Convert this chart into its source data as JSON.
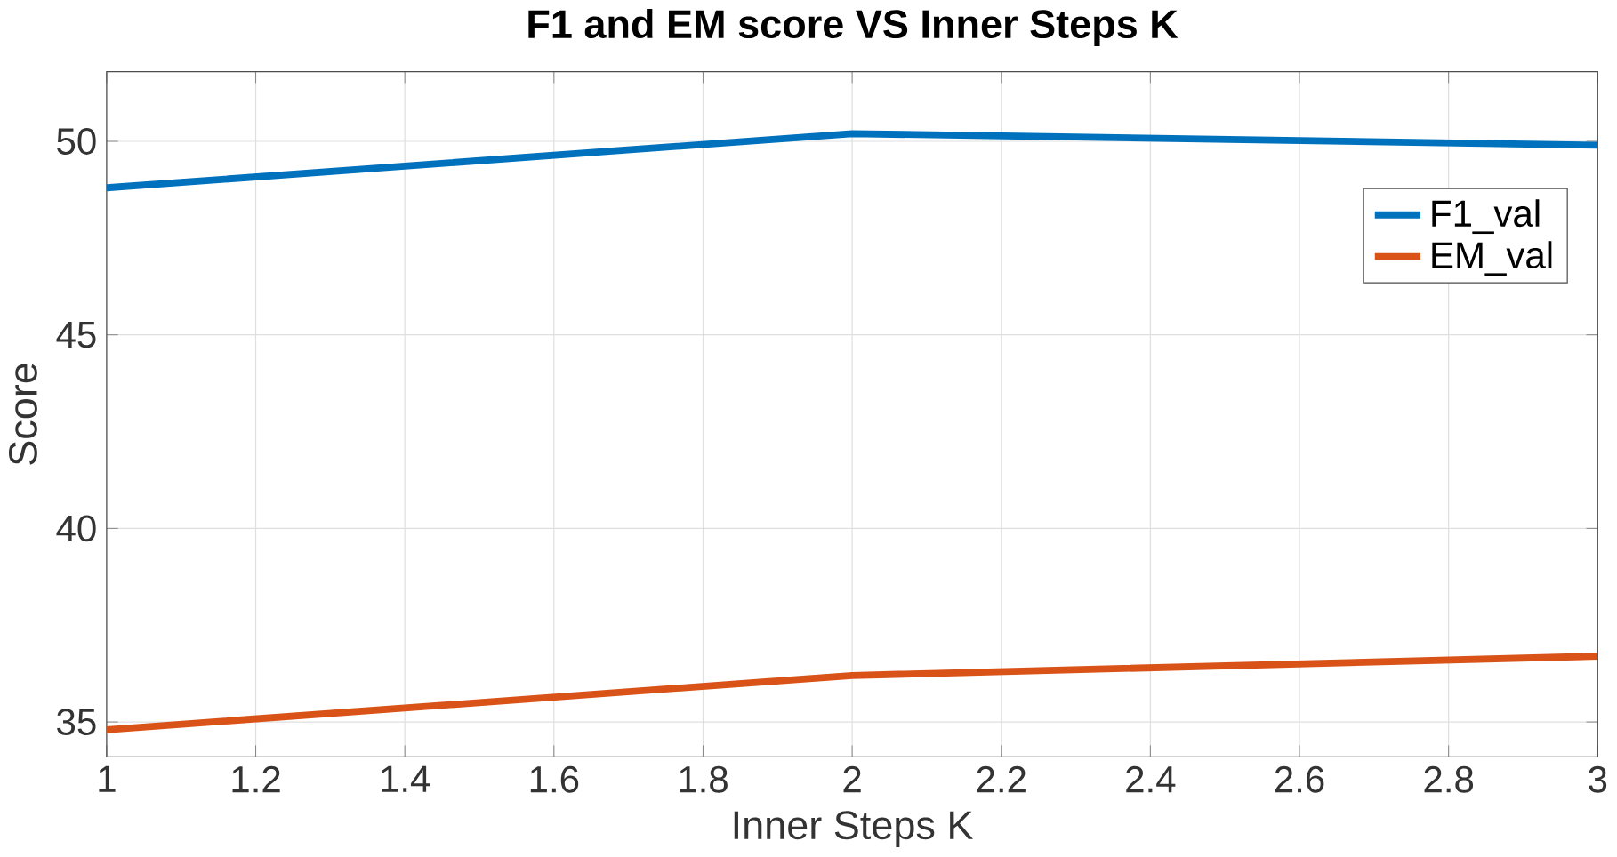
{
  "chart_data": {
    "type": "line",
    "title": "F1 and EM score VS Inner Steps K",
    "xlabel": "Inner Steps K",
    "ylabel": "Score",
    "x": [
      1,
      2,
      3
    ],
    "series": [
      {
        "name": "F1_val",
        "color": "#0072bd",
        "values": [
          48.8,
          50.2,
          49.9
        ]
      },
      {
        "name": "EM_val",
        "color": "#d95319",
        "values": [
          34.8,
          36.2,
          36.7
        ]
      }
    ],
    "xlim": [
      1,
      3
    ],
    "xticks": [
      1,
      1.2,
      1.4,
      1.6,
      1.8,
      2,
      2.2,
      2.4,
      2.6,
      2.8,
      3
    ],
    "ylim": [
      34.1,
      51.8
    ],
    "yticks": [
      35,
      40,
      45,
      50
    ],
    "grid": true,
    "legend": "top right",
    "marker": "none",
    "line_style": "solid"
  }
}
